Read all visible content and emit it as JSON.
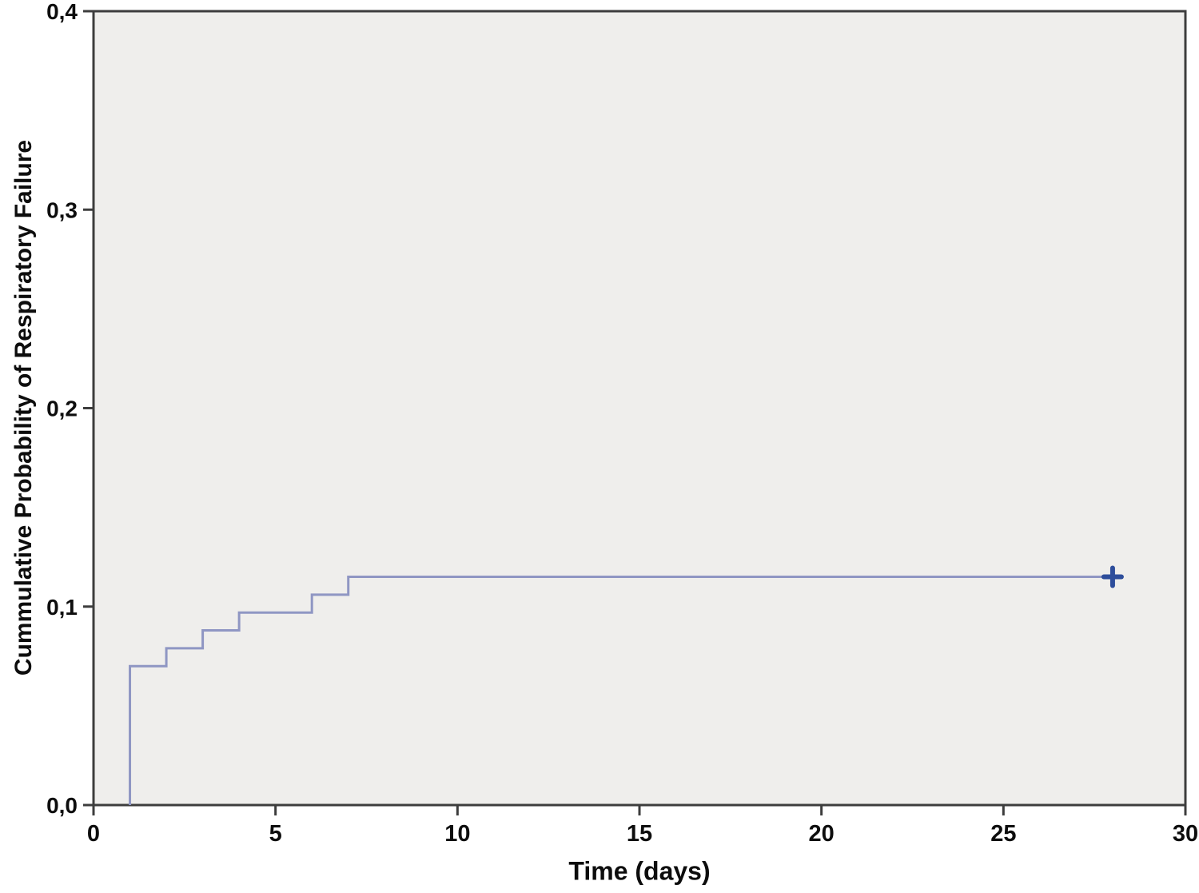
{
  "chart_data": {
    "type": "line",
    "subtype": "step-function-survival",
    "title": "",
    "xlabel": "Time (days)",
    "ylabel": "Cummulative Probability of Respiratory Failure",
    "xlim": [
      0,
      30
    ],
    "ylim": [
      0.0,
      0.4
    ],
    "xticks": [
      0,
      5,
      10,
      15,
      20,
      25,
      30
    ],
    "xtick_labels": [
      "0",
      "5",
      "10",
      "15",
      "20",
      "25",
      "30"
    ],
    "ytick_values": [
      0.0,
      0.1,
      0.2,
      0.3,
      0.4
    ],
    "ytick_labels": [
      "0,0",
      "0,1",
      "0,2",
      "0,3",
      "0,4"
    ],
    "decimal_separator": ",",
    "grid": false,
    "legend": "none",
    "colors": {
      "plot_background": "#efeeec",
      "frame": "#3d3d3d",
      "line": "#8f96c3",
      "censor_marker": "#2d4d9b",
      "text": "#0d0d0d"
    },
    "series": [
      {
        "name": "Cumulative probability of respiratory failure",
        "draw": "polyline",
        "points": [
          [
            1,
            0.0
          ],
          [
            1,
            0.07
          ],
          [
            2,
            0.07
          ],
          [
            2,
            0.079
          ],
          [
            3,
            0.079
          ],
          [
            3,
            0.088
          ],
          [
            4,
            0.088
          ],
          [
            4,
            0.097
          ],
          [
            6,
            0.097
          ],
          [
            6,
            0.106
          ],
          [
            7,
            0.106
          ],
          [
            7,
            0.115
          ],
          [
            28,
            0.115
          ]
        ]
      }
    ],
    "event_steps": [
      {
        "day": 1,
        "cumulative_probability": 0.07
      },
      {
        "day": 2,
        "cumulative_probability": 0.079
      },
      {
        "day": 3,
        "cumulative_probability": 0.088
      },
      {
        "day": 4,
        "cumulative_probability": 0.097
      },
      {
        "day": 6,
        "cumulative_probability": 0.106
      },
      {
        "day": 7,
        "cumulative_probability": 0.115
      }
    ],
    "censored_points": [
      {
        "day": 28,
        "cumulative_probability": 0.115,
        "marker": "+"
      }
    ]
  }
}
